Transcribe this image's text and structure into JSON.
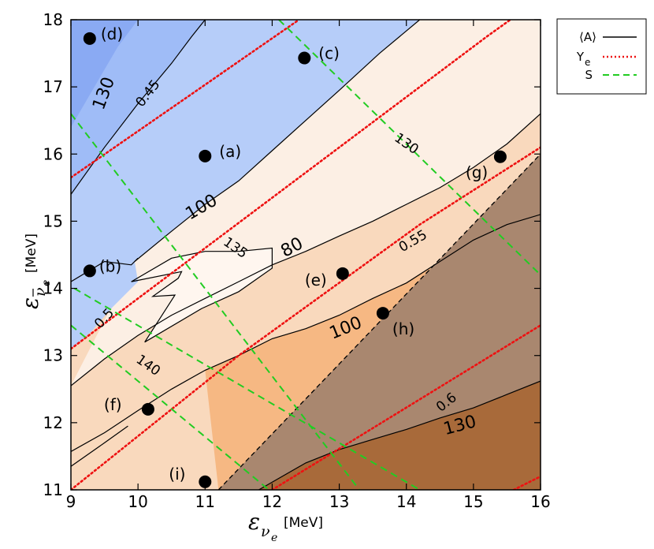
{
  "chart_data": {
    "type": "contour",
    "xlim": [
      9,
      16
    ],
    "ylim": [
      11,
      18
    ],
    "x_ticks": [
      "9",
      "10",
      "11",
      "12",
      "13",
      "14",
      "15",
      "16"
    ],
    "y_ticks": [
      "11",
      "12",
      "13",
      "14",
      "15",
      "16",
      "17",
      "18"
    ],
    "xlabel": {
      "symbol": "ε",
      "sub": "ν",
      "subsub": "e",
      "unit": "[MeV]"
    },
    "ylabel": {
      "symbol": "ε",
      "sub": "ν",
      "subsub": "e",
      "unit": "[MeV]"
    },
    "colors": {
      "blue_dark": "#8aaaf3",
      "blue_mid": "#9fbcf7",
      "blue_light": "#b6cdf9",
      "peach_lightest": "#fcefe4",
      "peach_light": "#f9d9bd",
      "peach_mid": "#f6b883",
      "greybrown": "#a9876f",
      "brown": "#a86a3a",
      "A_line": "#000000",
      "Ye_line": "#ee1111",
      "S_line": "#22cc22"
    },
    "legend": {
      "placement": "outside-top-right",
      "entries": [
        {
          "key": "A",
          "label": "⟨A⟩",
          "style": "solid"
        },
        {
          "key": "Ye",
          "label": "Y",
          "sub": "e",
          "style": "dotted"
        },
        {
          "key": "S",
          "label": "S",
          "style": "dashed"
        }
      ]
    },
    "A_contour_labels": [
      {
        "text": "130",
        "x": 9.5,
        "y": 16.9,
        "rot": -70,
        "size": 22
      },
      {
        "text": "100",
        "x": 10.95,
        "y": 15.2,
        "rot": -30,
        "size": 22
      },
      {
        "text": "80",
        "x": 12.3,
        "y": 14.6,
        "rot": -28,
        "size": 22
      },
      {
        "text": "100",
        "x": 13.1,
        "y": 13.4,
        "rot": -22,
        "size": 22
      },
      {
        "text": "130",
        "x": 14.8,
        "y": 11.95,
        "rot": -15,
        "size": 22
      }
    ],
    "Ye_contour_labels": [
      {
        "text": "0.45",
        "x": 10.15,
        "y": 16.9,
        "rot": -52,
        "size": 17
      },
      {
        "text": "0.5",
        "x": 9.5,
        "y": 13.55,
        "rot": -48,
        "size": 17
      },
      {
        "text": "0.55",
        "x": 14.1,
        "y": 14.7,
        "rot": -30,
        "size": 17
      },
      {
        "text": "0.6",
        "x": 14.6,
        "y": 12.3,
        "rot": -38,
        "size": 17
      }
    ],
    "S_contour_labels": [
      {
        "text": "130",
        "x": 14.0,
        "y": 16.15,
        "rot": 35,
        "size": 17
      },
      {
        "text": "135",
        "x": 11.45,
        "y": 14.6,
        "rot": 35,
        "size": 17
      },
      {
        "text": "140",
        "x": 10.15,
        "y": 12.85,
        "rot": 35,
        "size": 17
      }
    ],
    "Ye_lines": [
      [
        [
          9.0,
          15.65
        ],
        [
          12.4,
          18.0
        ]
      ],
      [
        [
          9.0,
          13.1
        ],
        [
          13.0,
          16.1
        ],
        [
          15.2,
          17.75
        ],
        [
          15.55,
          18.0
        ]
      ],
      [
        [
          9.0,
          11.0
        ],
        [
          11.5,
          13.0
        ],
        [
          14.2,
          14.95
        ],
        [
          16.0,
          16.1
        ]
      ],
      [
        [
          12.0,
          11.0
        ],
        [
          16.0,
          13.45
        ]
      ],
      [
        [
          15.6,
          11.0
        ],
        [
          16.0,
          11.2
        ]
      ]
    ],
    "S_lines": [
      [
        [
          9.0,
          16.6
        ],
        [
          13.3,
          11.0
        ]
      ],
      [
        [
          9.0,
          13.45
        ],
        [
          11.95,
          11.0
        ]
      ],
      [
        [
          12.1,
          18.0
        ],
        [
          16.0,
          14.2
        ]
      ],
      [
        [
          9.05,
          14.0
        ],
        [
          14.2,
          11.0
        ]
      ]
    ],
    "points": [
      {
        "label": "(a)",
        "x": 11.0,
        "y": 15.97
      },
      {
        "label": "(b)",
        "x": 9.28,
        "y": 14.26
      },
      {
        "label": "(c)",
        "x": 12.48,
        "y": 17.43
      },
      {
        "label": "(d)",
        "x": 9.28,
        "y": 17.72
      },
      {
        "label": "(e)",
        "x": 13.05,
        "y": 14.22
      },
      {
        "label": "(f)",
        "x": 10.15,
        "y": 12.2
      },
      {
        "label": "(g)",
        "x": 15.4,
        "y": 15.96
      },
      {
        "label": "(h)",
        "x": 13.65,
        "y": 13.63
      },
      {
        "label": "(i)",
        "x": 11.0,
        "y": 11.12
      }
    ]
  }
}
